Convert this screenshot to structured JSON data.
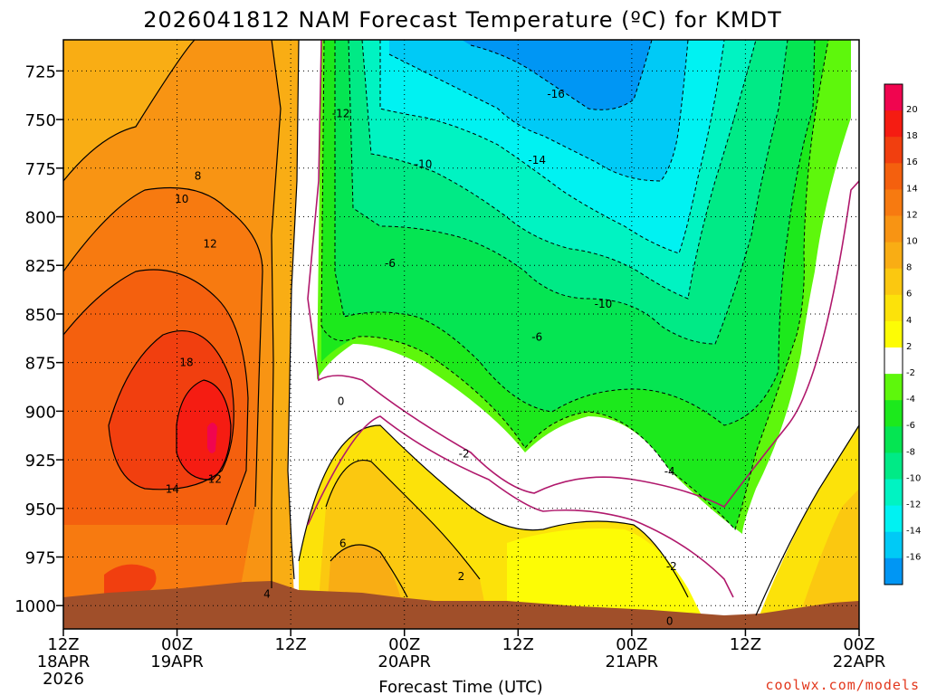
{
  "chart_data": {
    "type": "contour",
    "title": "2026041812 NAM Forecast Temperature (ºC) for KMDT",
    "xlabel": "Forecast Time (UTC)",
    "ylabel": "",
    "credit": "coolwx.com/models",
    "x_ticks": [
      {
        "h": 0,
        "l1": "12Z",
        "l2": "18APR",
        "l3": "2026"
      },
      {
        "h": 12,
        "l1": "00Z",
        "l2": "19APR",
        "l3": ""
      },
      {
        "h": 24,
        "l1": "12Z",
        "l2": "",
        "l3": ""
      },
      {
        "h": 36,
        "l1": "00Z",
        "l2": "20APR",
        "l3": ""
      },
      {
        "h": 48,
        "l1": "12Z",
        "l2": "",
        "l3": ""
      },
      {
        "h": 60,
        "l1": "00Z",
        "l2": "21APR",
        "l3": ""
      },
      {
        "h": 72,
        "l1": "12Z",
        "l2": "",
        "l3": ""
      },
      {
        "h": 84,
        "l1": "00Z",
        "l2": "22APR",
        "l3": ""
      }
    ],
    "y_ticks": [
      725,
      750,
      775,
      800,
      825,
      850,
      875,
      900,
      925,
      950,
      975,
      1000
    ],
    "xlim": [
      0,
      84
    ],
    "ylim": [
      1012,
      709
    ],
    "colorbar": [
      {
        "range": [
          20,
          22
        ],
        "color": "#f0054f",
        "label": "20"
      },
      {
        "range": [
          18,
          20
        ],
        "color": "#f51c12",
        "label": "18"
      },
      {
        "range": [
          16,
          18
        ],
        "color": "#f13f0f",
        "label": "16"
      },
      {
        "range": [
          14,
          16
        ],
        "color": "#f4600e",
        "label": "14"
      },
      {
        "range": [
          12,
          14
        ],
        "color": "#f77a10",
        "label": "12"
      },
      {
        "range": [
          10,
          12
        ],
        "color": "#f89413",
        "label": "10"
      },
      {
        "range": [
          8,
          10
        ],
        "color": "#f9ad14",
        "label": "8"
      },
      {
        "range": [
          6,
          8
        ],
        "color": "#fbc810",
        "label": "6"
      },
      {
        "range": [
          4,
          6
        ],
        "color": "#fce20a",
        "label": "4"
      },
      {
        "range": [
          2,
          4
        ],
        "color": "#fdfc05",
        "label": "2"
      },
      {
        "range": [
          -2,
          2
        ],
        "color": "#ffffff",
        "label": "-2"
      },
      {
        "range": [
          -4,
          -2
        ],
        "color": "#5ef70c",
        "label": "-4"
      },
      {
        "range": [
          -6,
          -4
        ],
        "color": "#1ce91c",
        "label": "-6"
      },
      {
        "range": [
          -8,
          -6
        ],
        "color": "#05e552",
        "label": "-8"
      },
      {
        "range": [
          -10,
          -8
        ],
        "color": "#00ea86",
        "label": "-10"
      },
      {
        "range": [
          -12,
          -10
        ],
        "color": "#00f3c2",
        "label": "-12"
      },
      {
        "range": [
          -14,
          -12
        ],
        "color": "#00f2f2",
        "label": "-14"
      },
      {
        "range": [
          -16,
          -14
        ],
        "color": "#00caf6",
        "label": "-16"
      },
      {
        "range": [
          -18,
          -16
        ],
        "color": "#0096f4",
        "label": ""
      }
    ],
    "contour_labels": [
      {
        "text": "8",
        "h": 14.2,
        "p": 779
      },
      {
        "text": "10",
        "h": 12.5,
        "p": 791
      },
      {
        "text": "12",
        "h": 15.5,
        "p": 814
      },
      {
        "text": "18",
        "h": 13.0,
        "p": 875
      },
      {
        "text": "14",
        "h": 11.5,
        "p": 940
      },
      {
        "text": "12",
        "h": 16.0,
        "p": 935
      },
      {
        "text": "4",
        "h": 21.5,
        "p": 994
      },
      {
        "text": "0",
        "h": 29.3,
        "p": 895
      },
      {
        "text": "6",
        "h": 29.5,
        "p": 968
      },
      {
        "text": "-12",
        "h": 29.3,
        "p": 747
      },
      {
        "text": "-10",
        "h": 38.0,
        "p": 773
      },
      {
        "text": "-6",
        "h": 34.5,
        "p": 824
      },
      {
        "text": "-16",
        "h": 52.0,
        "p": 737
      },
      {
        "text": "-14",
        "h": 50.0,
        "p": 771
      },
      {
        "text": "-10",
        "h": 57.0,
        "p": 845
      },
      {
        "text": "-6",
        "h": 50.0,
        "p": 862
      },
      {
        "text": "-2",
        "h": 42.3,
        "p": 922
      },
      {
        "text": "2",
        "h": 42.0,
        "p": 985
      },
      {
        "text": "-4",
        "h": 64.0,
        "p": 931
      },
      {
        "text": "-2",
        "h": 64.2,
        "p": 980
      },
      {
        "text": "0",
        "h": 64.0,
        "p": 1008
      }
    ]
  }
}
